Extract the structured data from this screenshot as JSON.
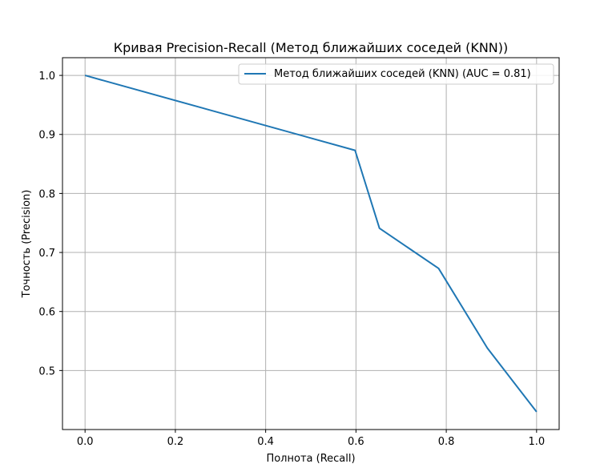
{
  "chart_data": {
    "type": "line",
    "title": "Кривая Precision-Recall (Метод ближайших соседей (KNN))",
    "xlabel": "Полнота (Recall)",
    "ylabel": "Точность (Precision)",
    "xlim": [
      -0.05,
      1.05
    ],
    "ylim": [
      0.4,
      1.03
    ],
    "xticks": [
      0.0,
      0.2,
      0.4,
      0.6,
      0.8,
      1.0
    ],
    "xtick_labels": [
      "0.0",
      "0.2",
      "0.4",
      "0.6",
      "0.8",
      "1.0"
    ],
    "yticks": [
      0.5,
      0.6,
      0.7,
      0.8,
      0.9,
      1.0
    ],
    "ytick_labels": [
      "0.5",
      "0.6",
      "0.7",
      "0.8",
      "0.9",
      "1.0"
    ],
    "grid": true,
    "legend_position": "top-right",
    "series": [
      {
        "name": "Метод ближайших соседей (KNN) (AUC = 0.81)",
        "color": "#1f77b4",
        "x": [
          0.0,
          0.598,
          0.652,
          0.783,
          0.891,
          1.0
        ],
        "y": [
          1.0,
          0.873,
          0.741,
          0.673,
          0.538,
          0.43
        ]
      }
    ]
  }
}
